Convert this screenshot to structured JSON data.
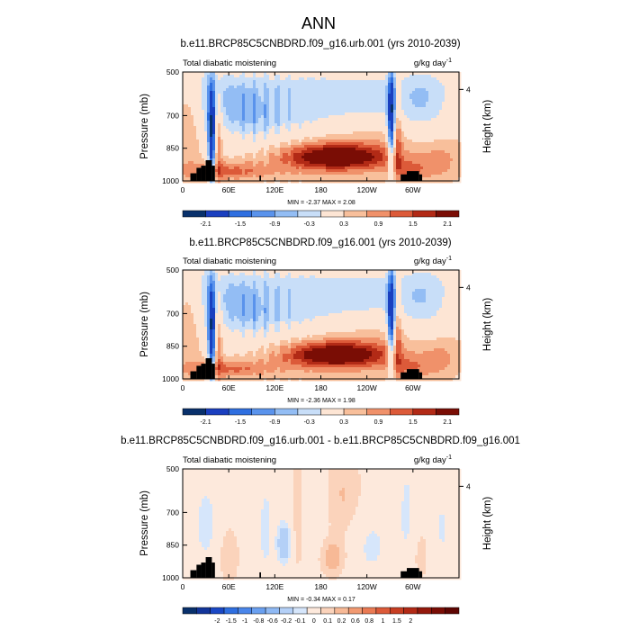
{
  "figure": {
    "title": "ANN"
  },
  "colors": {
    "land": "#000000",
    "frame": "#000000",
    "scale_11": [
      "#08306b",
      "#1a3fbf",
      "#2f6fe0",
      "#5a93ec",
      "#93bdf4",
      "#c8def8",
      "#fde5d4",
      "#f8bf9b",
      "#f0916a",
      "#dc5a39",
      "#b22a16",
      "#7a0d05"
    ],
    "scale_19": [
      "#08306b",
      "#12359a",
      "#1a48c5",
      "#2f6fe0",
      "#4a86ea",
      "#6aa0f0",
      "#8fb9f4",
      "#b4d0f7",
      "#d6e6fb",
      "#fde9dc",
      "#fbd3bb",
      "#f7b996",
      "#f29a72",
      "#ea7a53",
      "#dc5a39",
      "#c73e22",
      "#b22a16",
      "#94180c",
      "#7a0d05",
      "#5e0502"
    ]
  },
  "chart_data": [
    {
      "type": "heatmap",
      "title": "b.e11.BRCP85C5CNBDRD.f09_g16.urb.001 (yrs 2010-2039)",
      "subtitle_left": "Total diabatic moistening",
      "units": "g/kg day",
      "units_exp": "-1",
      "ylabel": "Pressure (mb)",
      "ylabel_right": "Height (km)",
      "xticks": [
        "0",
        "60E",
        "120E",
        "180",
        "120W",
        "60W"
      ],
      "yticks": [
        "500",
        "700",
        "850",
        "1000"
      ],
      "right_ticks": [
        "4"
      ],
      "minmax": "MIN =  -2.37  MAX =   2.08",
      "colorbar_labels": [
        "-2.1",
        "-1.5",
        "-0.9",
        "-0.3",
        "0.3",
        "0.9",
        "1.5",
        "2.1"
      ],
      "colorbar_levels": [
        -2.4,
        -2.1,
        -1.8,
        -1.5,
        -1.2,
        -0.9,
        -0.6,
        -0.3,
        0.3,
        0.6,
        0.9,
        1.2,
        1.5,
        1.8,
        2.1,
        2.4
      ],
      "min": -2.37,
      "max": 2.08,
      "scale": "11"
    },
    {
      "type": "heatmap",
      "title": "b.e11.BRCP85C5CNBDRD.f09_g16.001 (yrs 2010-2039)",
      "subtitle_left": "Total diabatic moistening",
      "units": "g/kg day",
      "units_exp": "-1",
      "ylabel": "Pressure (mb)",
      "ylabel_right": "Height (km)",
      "xticks": [
        "0",
        "60E",
        "120E",
        "180",
        "120W",
        "60W"
      ],
      "yticks": [
        "500",
        "700",
        "850",
        "1000"
      ],
      "right_ticks": [
        "4"
      ],
      "minmax": "MIN =  -2.36  MAX =   1.98",
      "colorbar_labels": [
        "-2.1",
        "-1.5",
        "-0.9",
        "-0.3",
        "0.3",
        "0.9",
        "1.5",
        "2.1"
      ],
      "colorbar_levels": [
        -2.4,
        -2.1,
        -1.8,
        -1.5,
        -1.2,
        -0.9,
        -0.6,
        -0.3,
        0.3,
        0.6,
        0.9,
        1.2,
        1.5,
        1.8,
        2.1,
        2.4
      ],
      "min": -2.36,
      "max": 1.98,
      "scale": "11"
    },
    {
      "type": "heatmap",
      "title": "b.e11.BRCP85C5CNBDRD.f09_g16.urb.001 - b.e11.BRCP85C5CNBDRD.f09_g16.001",
      "subtitle_left": "Total diabatic moistening",
      "units": "g/kg day",
      "units_exp": "-1",
      "ylabel": "Pressure (mb)",
      "ylabel_right": "Height (km)",
      "xticks": [
        "0",
        "60E",
        "120E",
        "180",
        "120W",
        "60W"
      ],
      "yticks": [
        "500",
        "700",
        "850",
        "1000"
      ],
      "right_ticks": [
        "4"
      ],
      "minmax": "MIN =  -0.34  MAX =   0.17",
      "colorbar_labels": [
        "-2",
        "-1.5",
        "-1",
        "-0.8",
        "-0.6",
        "-0.2",
        "-0.1",
        "0",
        "0.1",
        "0.2",
        "0.6",
        "0.8",
        "1",
        "1.5",
        "2"
      ],
      "min": -0.34,
      "max": 0.17,
      "scale": "19"
    }
  ]
}
